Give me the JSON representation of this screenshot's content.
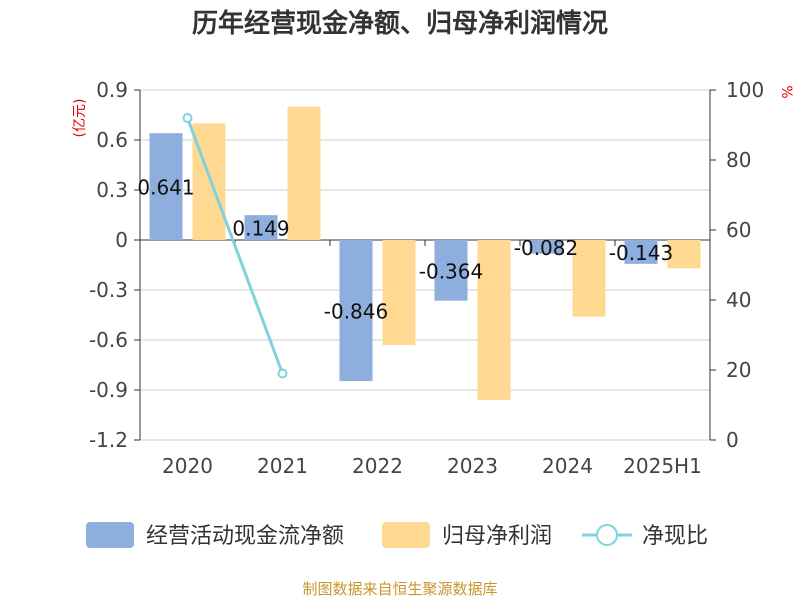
{
  "title": "历年经营现金净额、归母净利润情况",
  "source": "制图数据来自恒生聚源数据库",
  "chart_data": {
    "type": "bar",
    "categories": [
      "2020",
      "2021",
      "2022",
      "2023",
      "2024",
      "2025H1"
    ],
    "left_axis": {
      "unit": "(亿元)",
      "range": [
        -1.2,
        0.9
      ],
      "ticks": [
        "0.9",
        "0.6",
        "0.3",
        "0",
        "-0.3",
        "-0.6",
        "-0.9",
        "-1.2"
      ]
    },
    "right_axis": {
      "unit": "%",
      "range": [
        0,
        100
      ],
      "ticks": [
        "100",
        "80",
        "60",
        "40",
        "20",
        "0"
      ]
    },
    "series": [
      {
        "name": "经营活动现金流净额",
        "type": "bar",
        "color": "#8eaedd",
        "values": [
          0.641,
          0.149,
          -0.846,
          -0.364,
          -0.082,
          -0.143
        ],
        "labels": [
          "0.641",
          "0.149",
          "-0.846",
          "-0.364",
          "-0.082",
          "-0.143"
        ]
      },
      {
        "name": "归母净利润",
        "type": "bar",
        "color": "#ffd892",
        "values": [
          0.7,
          0.8,
          -0.63,
          -0.96,
          -0.46,
          -0.17
        ]
      },
      {
        "name": "净现比",
        "type": "line",
        "axis": "right",
        "color": "#7ed3dc",
        "values": [
          92,
          19,
          null,
          null,
          null,
          null
        ]
      }
    ],
    "grid": true,
    "legend": "bottom"
  }
}
